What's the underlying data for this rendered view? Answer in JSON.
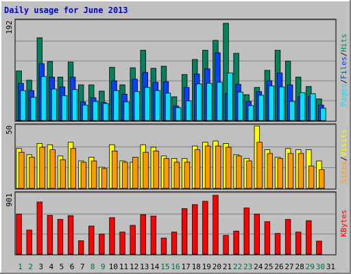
{
  "title": "Daily usage for June 2013",
  "colors": {
    "background": "#c0c0c0",
    "border_light": "#ffffff",
    "border_dark": "#808080",
    "title": "#0000cc",
    "hits": "#00805c",
    "files": "#0040ff",
    "pages": "#00e0ff",
    "visits": "#ffff00",
    "sites": "#ff9900",
    "kbytes": "#ff0000",
    "weekday": "#000000",
    "weekend": "#006a48"
  },
  "chart_data": {
    "type": "bar",
    "categories": [
      "1",
      "2",
      "3",
      "4",
      "5",
      "6",
      "7",
      "8",
      "9",
      "10",
      "11",
      "12",
      "13",
      "14",
      "15",
      "16",
      "17",
      "18",
      "19",
      "20",
      "21",
      "22",
      "23",
      "24",
      "25",
      "26",
      "27",
      "28",
      "29",
      "30",
      "31"
    ],
    "weekend_days": [
      "1",
      "2",
      "8",
      "9",
      "15",
      "16",
      "22",
      "23",
      "29",
      "30"
    ],
    "panels": [
      {
        "id": "hits-files-pages",
        "ymax_label": "192",
        "ymax": 192,
        "right_labels": [
          "Pages",
          "Files",
          "Hits"
        ],
        "series": [
          {
            "name": "Hits",
            "color_key": "hits",
            "values": [
              96,
              78,
              160,
              114,
              84,
              113,
              69,
              69,
              57,
              103,
              69,
              102,
              136,
              101,
              105,
              46,
              89,
              118,
              136,
              155,
              188,
              130,
              50,
              64,
              97,
              136,
              115,
              84,
              66,
              42,
              0
            ]
          },
          {
            "name": "Files",
            "color_key": "files",
            "values": [
              72,
              58,
              110,
              84,
              65,
              84,
              36,
              44,
              35,
              77,
              51,
              80,
              93,
              74,
              75,
              28,
              64,
              90,
              100,
              131,
              52,
              70,
              37,
              56,
              77,
              92,
              69,
              46,
              47,
              30,
              0
            ]
          },
          {
            "name": "Pages",
            "color_key": "pages",
            "values": [
              58,
              45,
              85,
              61,
              48,
              60,
              30,
              37,
              33,
              58,
              36,
              56,
              64,
              58,
              53,
              25,
              38,
              71,
              72,
              74,
              92,
              55,
              29,
              49,
              67,
              65,
              37,
              54,
              52,
              24,
              0
            ]
          }
        ]
      },
      {
        "id": "visits-sites",
        "ymax_label": "50",
        "ymax": 50,
        "right_labels": [
          "Sites",
          "Visits"
        ],
        "series": [
          {
            "name": "Visits",
            "color_key": "visits",
            "values": [
              32,
              27,
              36,
              35,
              26,
              37,
              22,
              25,
              17,
              35,
              22,
              21,
              35,
              33,
              26,
              24,
              24,
              34,
              37,
              38,
              36,
              27,
              24,
              50,
              31,
              25,
              32,
              31,
              31,
              22,
              0
            ]
          },
          {
            "name": "Sites",
            "color_key": "sites",
            "values": [
              29,
              25,
              33,
              31,
              23,
              32,
              21,
              22,
              16,
              30,
              21,
              25,
              29,
              30,
              24,
              21,
              21,
              31,
              34,
              34,
              33,
              26,
              22,
              37,
              28,
              24,
              28,
              28,
              18,
              15,
              0
            ]
          }
        ]
      },
      {
        "id": "kbytes",
        "ymax_label": "901",
        "ymax": 901,
        "right_labels": [
          "KBytes"
        ],
        "series": [
          {
            "name": "KBytes",
            "color_key": "kbytes",
            "values": [
              600,
              360,
              780,
              580,
              520,
              575,
              200,
              420,
              300,
              545,
              330,
              430,
              590,
              570,
              240,
              330,
              680,
              740,
              790,
              880,
              280,
              345,
              690,
              600,
              485,
              310,
              520,
              330,
              500,
              195,
              0
            ]
          }
        ]
      }
    ]
  }
}
